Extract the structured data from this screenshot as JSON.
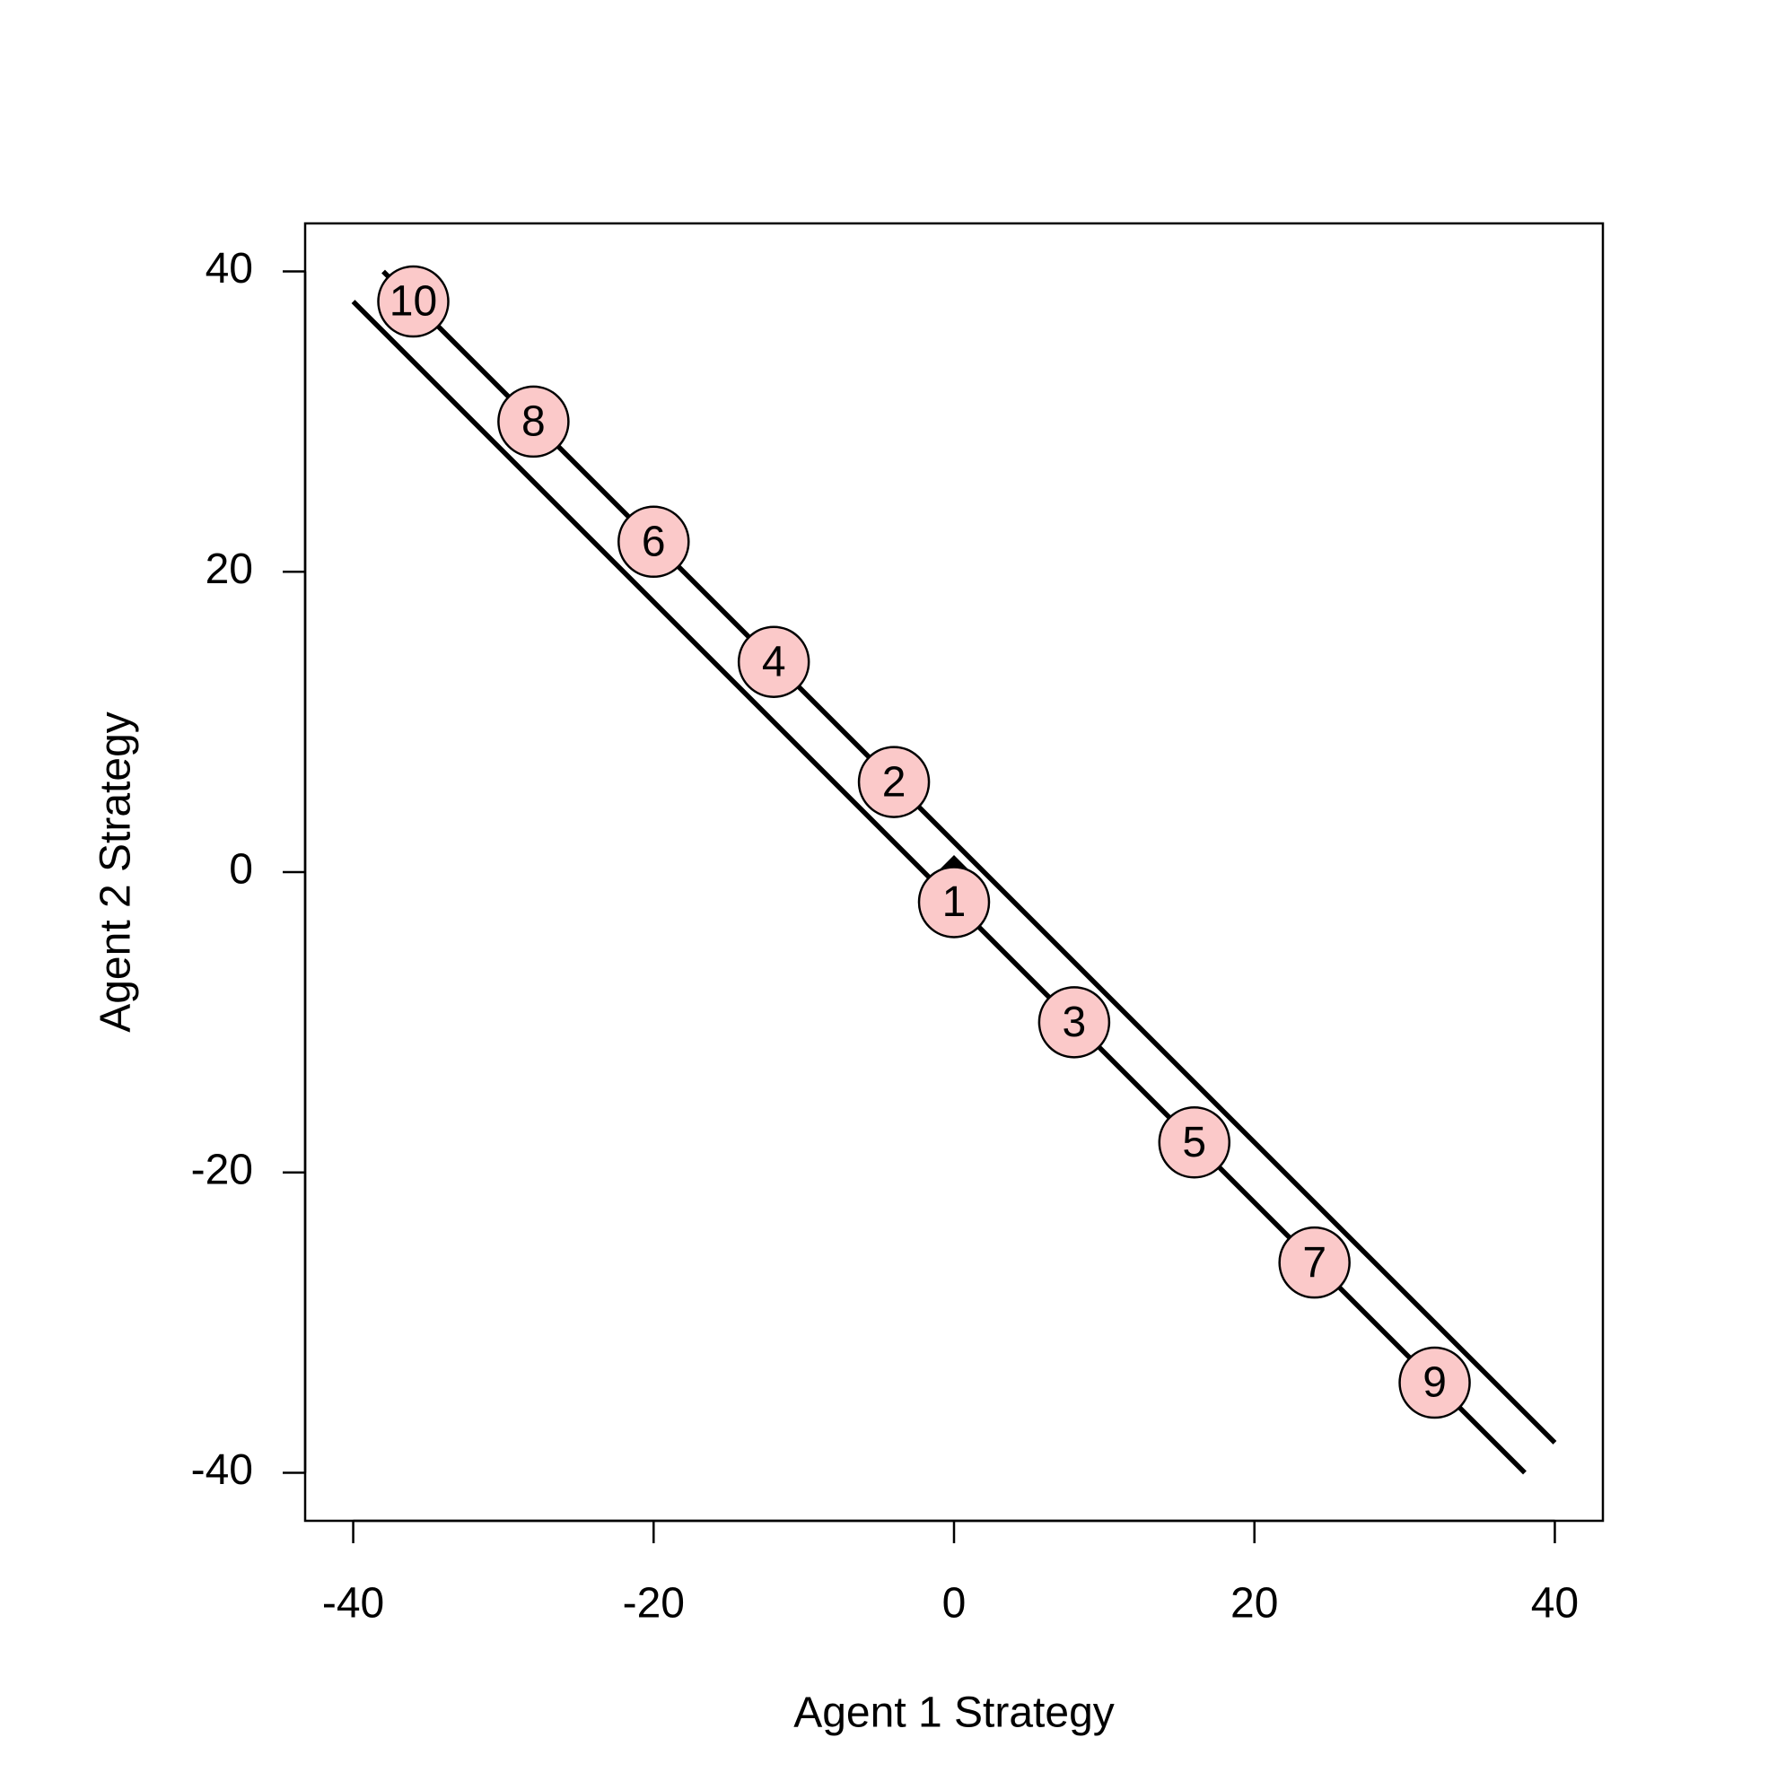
{
  "chart_data": {
    "type": "scatter",
    "x_label": "Agent 1 Strategy",
    "y_label": "Agent 2 Strategy",
    "xlim": [
      -43.2,
      43.2
    ],
    "ylim": [
      -43.2,
      43.2
    ],
    "xticks": [
      -40,
      -20,
      0,
      20,
      40
    ],
    "yticks": [
      -40,
      -20,
      0,
      20,
      40
    ],
    "labels": [
      "1",
      "2",
      "3",
      "4",
      "5",
      "6",
      "7",
      "8",
      "9",
      "10"
    ],
    "x": [
      0,
      -4,
      8,
      -12,
      16,
      -20,
      24,
      -28,
      32,
      -36
    ],
    "y": [
      -2,
      6,
      -10,
      14,
      -18,
      22,
      -26,
      30,
      -34,
      38
    ],
    "color": "#fbc9c9",
    "lines": [
      {
        "x": [
          -38,
          40
        ],
        "y": [
          40,
          -38
        ],
        "color": "#000000"
      },
      {
        "x": [
          -40,
          38
        ],
        "y": [
          38,
          -40
        ],
        "color": "#000000"
      }
    ],
    "marker": {
      "x": 0,
      "y": 0,
      "color": "#000000"
    }
  }
}
